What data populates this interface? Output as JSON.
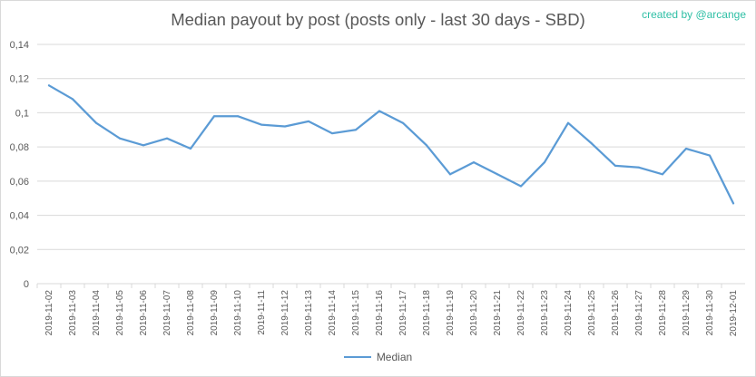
{
  "credit": "created by @arcange",
  "legend": {
    "position": "bottom"
  },
  "colors": {
    "series": "#5b9bd5",
    "grid": "#d9d9d9",
    "text": "#595959",
    "credit": "#2ebfa5"
  },
  "chart_data": {
    "type": "line",
    "title": "Median payout by post (posts only - last 30 days - SBD)",
    "xlabel": "",
    "ylabel": "",
    "ylim": [
      0,
      0.14
    ],
    "yticks": [
      "0",
      "0,02",
      "0,04",
      "0,06",
      "0,08",
      "0,1",
      "0,12",
      "0,14"
    ],
    "ytick_values": [
      0,
      0.02,
      0.04,
      0.06,
      0.08,
      0.1,
      0.12,
      0.14
    ],
    "grid": true,
    "categories": [
      "2019-11-02",
      "2019-11-03",
      "2019-11-04",
      "2019-11-05",
      "2019-11-06",
      "2019-11-07",
      "2019-11-08",
      "2019-11-09",
      "2019-11-10",
      "2019-11-11",
      "2019-11-12",
      "2019-11-13",
      "2019-11-14",
      "2019-11-15",
      "2019-11-16",
      "2019-11-17",
      "2019-11-18",
      "2019-11-19",
      "2019-11-20",
      "2019-11-21",
      "2019-11-22",
      "2019-11-23",
      "2019-11-24",
      "2019-11-25",
      "2019-11-26",
      "2019-11-27",
      "2019-11-28",
      "2019-11-29",
      "2019-11-30",
      "2019-12-01"
    ],
    "series": [
      {
        "name": "Median",
        "values": [
          0.116,
          0.108,
          0.094,
          0.085,
          0.081,
          0.085,
          0.079,
          0.098,
          0.098,
          0.093,
          0.092,
          0.095,
          0.088,
          0.09,
          0.101,
          0.094,
          0.081,
          0.064,
          0.071,
          0.064,
          0.057,
          0.071,
          0.094,
          0.082,
          0.069,
          0.068,
          0.064,
          0.079,
          0.075,
          0.047
        ]
      }
    ]
  }
}
